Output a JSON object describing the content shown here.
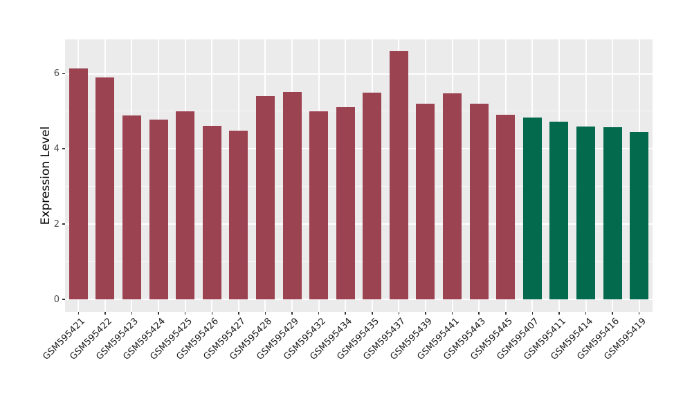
{
  "chart_data": {
    "type": "bar",
    "title": "",
    "xlabel": "",
    "ylabel": "Expression Level",
    "categories": [
      "GSM595421",
      "GSM595422",
      "GSM595423",
      "GSM595424",
      "GSM595425",
      "GSM595426",
      "GSM595427",
      "GSM595428",
      "GSM595429",
      "GSM595432",
      "GSM595434",
      "GSM595435",
      "GSM595437",
      "GSM595439",
      "GSM595441",
      "GSM595443",
      "GSM595445",
      "GSM595407",
      "GSM595411",
      "GSM595414",
      "GSM595416",
      "GSM595419"
    ],
    "values": [
      6.13,
      5.9,
      4.89,
      4.78,
      5.0,
      4.61,
      4.48,
      5.4,
      5.52,
      5.0,
      5.11,
      5.49,
      6.59,
      5.21,
      5.48,
      5.21,
      4.9,
      4.84,
      4.72,
      4.59,
      4.57,
      4.44
    ],
    "groups": [
      "group1",
      "group1",
      "group1",
      "group1",
      "group1",
      "group1",
      "group1",
      "group1",
      "group1",
      "group1",
      "group1",
      "group1",
      "group1",
      "group1",
      "group1",
      "group1",
      "group1",
      "group2",
      "group2",
      "group2",
      "group2",
      "group2"
    ],
    "group_colors": {
      "group1": "#9C4352",
      "group2": "#046A4E"
    },
    "yticks": [
      0,
      2,
      4,
      6
    ],
    "yminor": [
      1,
      3,
      5
    ],
    "ylim": [
      -0.33,
      6.91
    ],
    "bar_width_ratio": 0.7,
    "panel_bg": "#EBEBEB",
    "grid_color": "#FFFFFF",
    "grid": true,
    "legend": "none",
    "background": "#FFFFFF"
  }
}
